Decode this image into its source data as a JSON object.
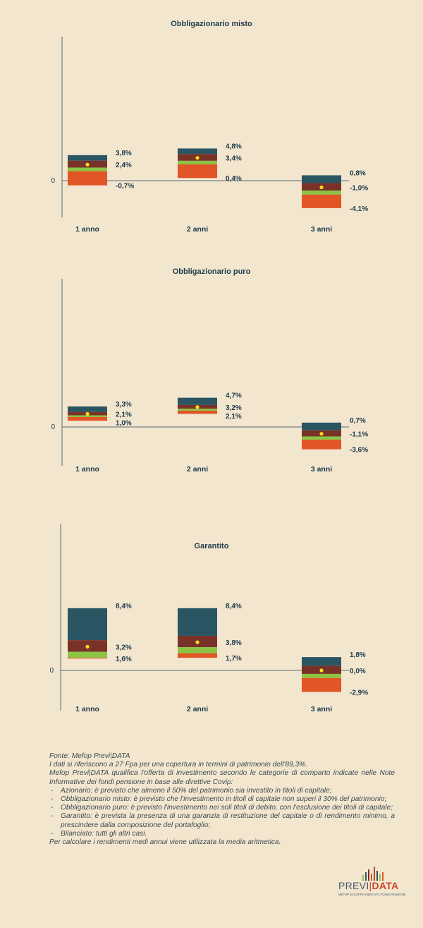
{
  "colors": {
    "background": "#f2e6cf",
    "max": "#2a5663",
    "upper": "#7a3228",
    "mid": "#8cc443",
    "min": "#e15527",
    "mean_dot": "#f5e218",
    "text": "#1f3a4a"
  },
  "chart_data": [
    {
      "type": "bar",
      "title": "Obbligazionario misto",
      "zero_label": "0",
      "categories": [
        "1 anno",
        "2 anni",
        "3 anni"
      ],
      "max": [
        3.8,
        4.8,
        0.8
      ],
      "mean": [
        2.4,
        3.4,
        -1.0
      ],
      "min": [
        -0.7,
        0.4,
        -4.1
      ],
      "labels_max": [
        "3,8%",
        "4,8%",
        "0,8%"
      ],
      "labels_mean": [
        "2,4%",
        "3,4%",
        "-1,0%"
      ],
      "labels_min": [
        "-0,7%",
        "0,4%",
        "-4,1%"
      ]
    },
    {
      "type": "bar",
      "title": "Obbligazionario puro",
      "zero_label": "0",
      "categories": [
        "1 anno",
        "2 anni",
        "3 anni"
      ],
      "max": [
        3.3,
        4.7,
        0.7
      ],
      "mean": [
        2.1,
        3.2,
        -1.1
      ],
      "min": [
        1.0,
        2.1,
        -3.6
      ],
      "labels_max": [
        "3,3%",
        "4,7%",
        "0,7%"
      ],
      "labels_mean": [
        "2,1%",
        "3,2%",
        "-1,1%"
      ],
      "labels_min": [
        "1,0%",
        "2,1%",
        "-3,6%"
      ]
    },
    {
      "type": "bar",
      "title": "Garantito",
      "zero_label": "0",
      "categories": [
        "1 anno",
        "2 anni",
        "3 anni"
      ],
      "max": [
        8.4,
        8.4,
        1.8
      ],
      "mean": [
        3.2,
        3.8,
        0.0
      ],
      "min": [
        1.6,
        1.7,
        -2.9
      ],
      "labels_max": [
        "8,4%",
        "8,4%",
        "1,8%"
      ],
      "labels_mean": [
        "3,2%",
        "3,8%",
        "0,0%"
      ],
      "labels_min": [
        "1,6%",
        "1,7%",
        "-2,9%"
      ]
    }
  ],
  "notes": {
    "source": "Fonte: Mefop Previ|DATA",
    "coverage": "I dati si riferiscono a 27 Fpa per una copertura in termini di patrimonio dell'89,3%.",
    "intro": "Mefop Previ|DATA qualifica l'offerta di investimento secondo le categorie di comparto indicate nelle Note Informative dei fondi pensione in base alle direttive Covip:",
    "items": [
      "Azionario: è previsto che almeno il 50% del patrimonio sia investito in titoli di capitale;",
      "Obbligazionario misto: è previsto che l'investimento in titoli di capitale non superi il 30% del patrimonio;",
      "Obbligazionario puro: è previsto l'investimento nei soli titoli di debito, con l'esclusione dei titoli di capitale;",
      "Garantito: è prevista la presenza di una garanzia di restituzione del capitale o di rendimento minimo, a prescindere dalla composizione del portafoglio;",
      "Bilanciato: tutti gli altri casi."
    ],
    "footer": "Per calcolare i rendimenti medi annui viene utilizzata la media aritmetica."
  },
  "logo": {
    "previ": "PREVI",
    "data": "DATA",
    "tagline": "MEFOP SVILUPPO MERCATO FONDI PENSIONE"
  }
}
